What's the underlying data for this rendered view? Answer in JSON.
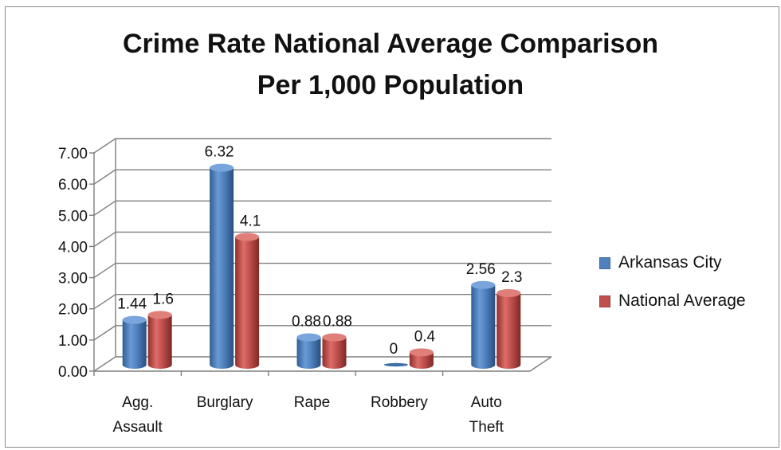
{
  "chart_data": {
    "type": "bar",
    "title": "Crime Rate National Average Comparison",
    "subtitle": "Per 1,000 Population",
    "categories": [
      "Agg. Assault",
      "Burglary",
      "Rape",
      "Robbery",
      "Auto Theft"
    ],
    "series": [
      {
        "name": "Arkansas City",
        "color": "#4F81BD",
        "values": [
          1.44,
          6.32,
          0.88,
          0,
          2.56
        ]
      },
      {
        "name": "National Average",
        "color": "#C0504D",
        "values": [
          1.6,
          4.1,
          0.88,
          0.4,
          2.3
        ]
      }
    ],
    "data_labels": [
      [
        "1.44",
        "6.32",
        "0.88",
        "0",
        "2.56"
      ],
      [
        "1.6",
        "4.1",
        "0.88",
        "0.4",
        "2.3"
      ]
    ],
    "y_ticks": [
      "0.00",
      "1.00",
      "2.00",
      "3.00",
      "4.00",
      "5.00",
      "6.00",
      "7.00"
    ],
    "ylim": [
      0,
      7
    ],
    "grid": true,
    "legend_position": "right",
    "style": "3d-cylinder"
  }
}
